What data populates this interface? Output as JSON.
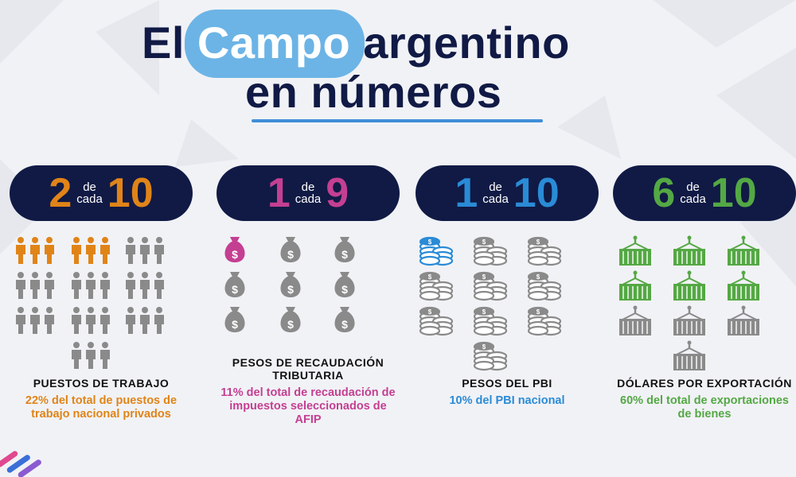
{
  "title": {
    "part1": "El",
    "highlight": "Campo",
    "part2": "argentino",
    "line2": "en números"
  },
  "colors": {
    "navy": "#101a45",
    "pill": "#6cb4e6",
    "orange": "#e08418",
    "magenta": "#c43f92",
    "blue": "#2a8bd6",
    "green": "#54a844",
    "gray": "#8a8a8a"
  },
  "stats": [
    {
      "numerator": "2",
      "connector_top": "de",
      "connector_bottom": "cada",
      "denominator": "10",
      "icon": "people-group-icon",
      "count_highlighted": 2,
      "count_total": 10,
      "label": "PUESTOS DE TRABAJO",
      "description": "22% del total de puestos de trabajo nacional privados"
    },
    {
      "numerator": "1",
      "connector_top": "de",
      "connector_bottom": "cada",
      "denominator": "9",
      "icon": "money-bag-icon",
      "count_highlighted": 1,
      "count_total": 9,
      "label": "PESOS DE RECAUDACIÓN TRIBUTARIA",
      "description": "11% del total de recaudación de impuestos seleccionados de AFIP"
    },
    {
      "numerator": "1",
      "connector_top": "de",
      "connector_bottom": "cada",
      "denominator": "10",
      "icon": "coin-stack-icon",
      "count_highlighted": 1,
      "count_total": 10,
      "label": "PESOS DEL PBI",
      "description": "10% del PBI nacional"
    },
    {
      "numerator": "6",
      "connector_top": "de",
      "connector_bottom": "cada",
      "denominator": "10",
      "icon": "shipping-container-icon",
      "count_highlighted": 6,
      "count_total": 10,
      "label": "DÓLARES POR EXPORTACIÓN",
      "description": "60% del total de exportaciones de bienes"
    }
  ]
}
